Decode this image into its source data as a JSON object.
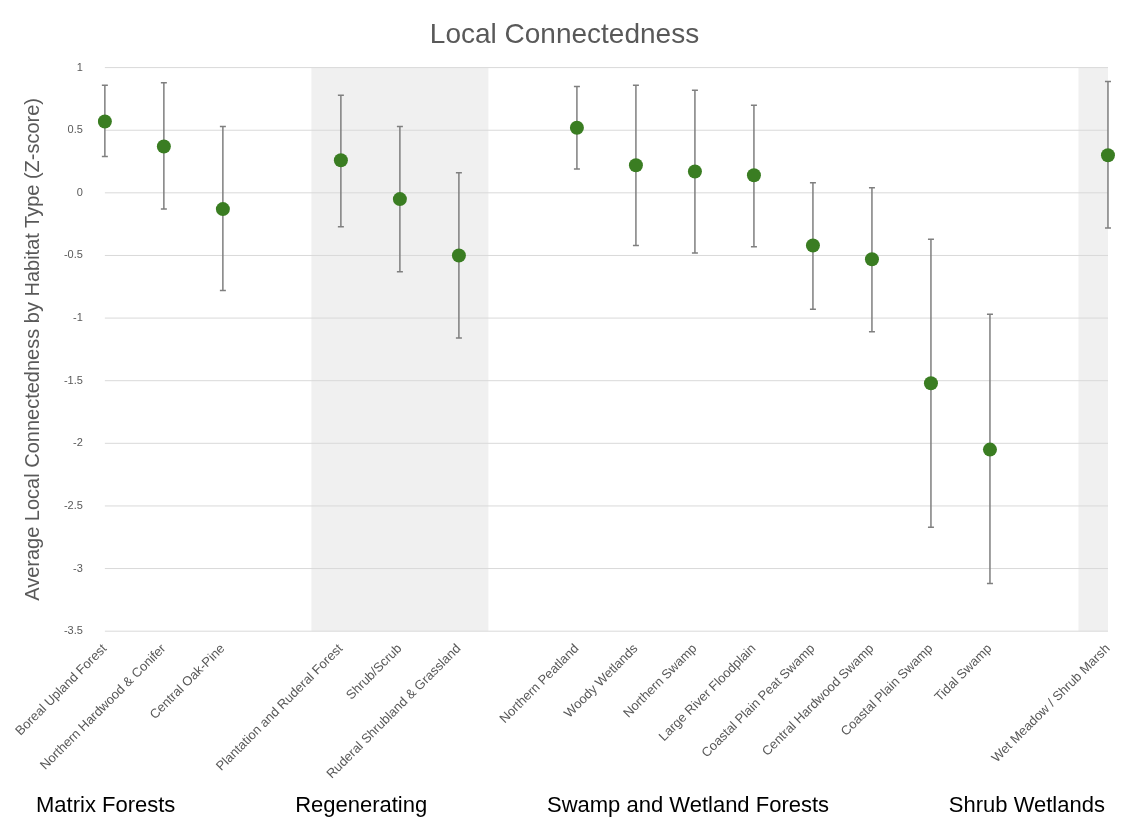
{
  "chart_data": {
    "type": "scatter",
    "title": "Local Connectedness",
    "ylabel": "Average Local Connectedness by Habitat Type (Z-score)",
    "categories": [
      "Boreal Upland Forest",
      "Northern Hardwood & Conifer",
      "Central Oak-Pine",
      null,
      "Plantation and Ruderal Forest",
      "Shrub/Scrub",
      "Ruderal Shrubland & Grassland",
      null,
      "Northern Peatland",
      "Woody Wetlands",
      "Northern Swamp",
      "Large River Floodplain",
      "Coastal Plain Peat Swamp",
      "Central Hardwood Swamp",
      "Coastal Plain Swamp",
      "Tidal Swamp",
      null,
      "Wet Meadow / Shrub Marsh"
    ],
    "values": [
      0.57,
      0.37,
      -0.13,
      null,
      0.26,
      -0.05,
      -0.5,
      null,
      0.52,
      0.22,
      0.17,
      0.14,
      -0.42,
      -0.53,
      -1.52,
      -2.05,
      null,
      0.3
    ],
    "errors": [
      [
        0.29,
        0.86
      ],
      [
        -0.13,
        0.88
      ],
      [
        -0.78,
        0.53
      ],
      null,
      [
        -0.27,
        0.78
      ],
      [
        -0.63,
        0.53
      ],
      [
        -1.16,
        0.16
      ],
      null,
      [
        0.19,
        0.85
      ],
      [
        -0.42,
        0.86
      ],
      [
        -0.48,
        0.82
      ],
      [
        -0.43,
        0.7
      ],
      [
        -0.93,
        0.08
      ],
      [
        -1.11,
        0.04
      ],
      [
        -2.67,
        -0.37
      ],
      [
        -3.12,
        -0.97
      ],
      null,
      [
        -0.28,
        0.89
      ]
    ],
    "color": "#3a7d22",
    "ylim": [
      -3.5,
      1
    ],
    "yticks": [
      -3.5,
      -3,
      -2.5,
      -2,
      -1.5,
      -1,
      -0.5,
      0,
      0.5,
      1
    ],
    "grid": "y",
    "legend": false,
    "marker": "circle",
    "bands": [
      {
        "axis": "x",
        "from": "Plantation and Ruderal Forest",
        "to": "Ruderal Shrubland & Grassland",
        "color": "#f0f0f0"
      },
      {
        "axis": "x",
        "from": "Wet Meadow / Shrub Marsh",
        "to": "Wet Meadow / Shrub Marsh",
        "color": "#f0f0f0"
      }
    ],
    "annotations": [
      "Matrix Forests",
      "Regenerating",
      "Swamp and Wetland Forests",
      "Shrub Wetlands"
    ]
  }
}
